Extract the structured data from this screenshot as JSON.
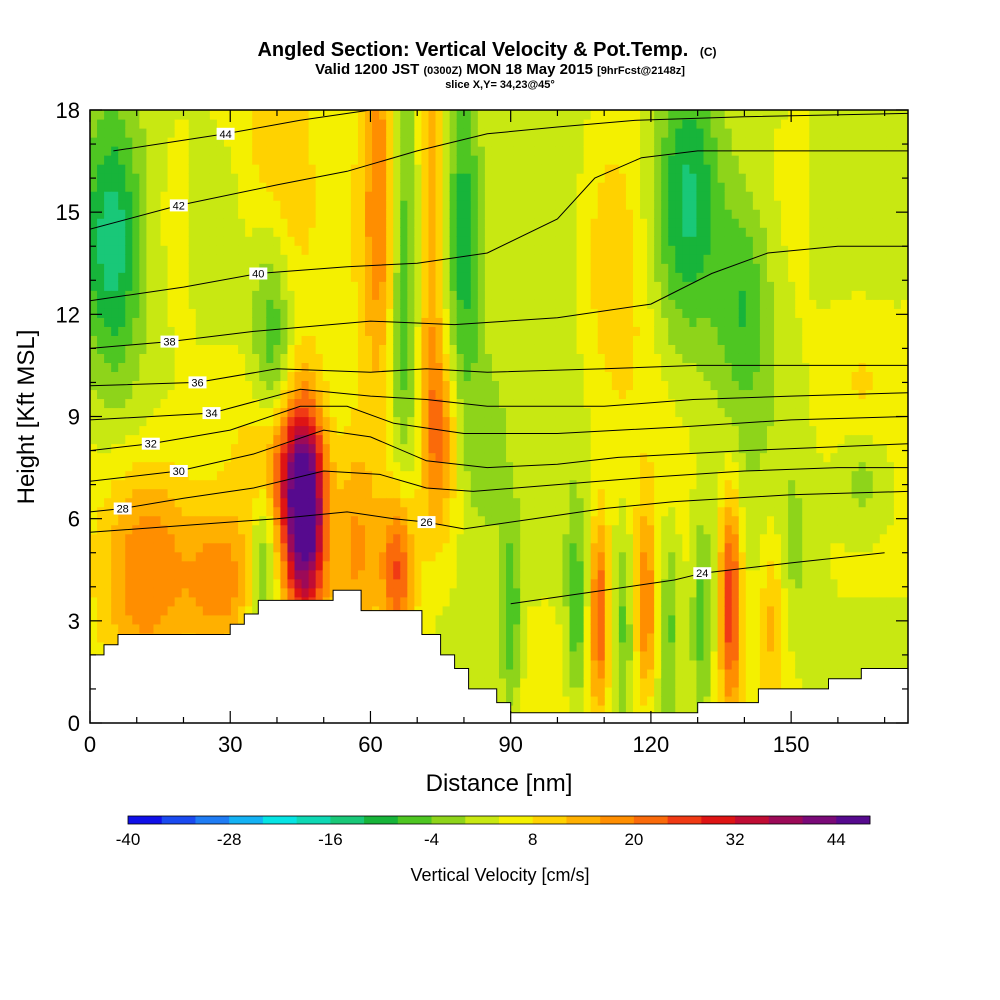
{
  "header": {
    "title_main": "Angled Section: Vertical Velocity & Pot.Temp.",
    "title_unit": "(C)",
    "valid_prefix": "Valid 1200 JST",
    "valid_utc": "(0300Z)",
    "valid_date": "MON 18 May 2015",
    "valid_fcst": "[9hrFcst@2148z]",
    "slice": "slice X,Y= 34,23@45°"
  },
  "colorbar": {
    "title": "Vertical Velocity [cm/s]",
    "tick_labels": [
      "-40",
      "-28",
      "-16",
      "-4",
      "8",
      "20",
      "32",
      "44"
    ],
    "colors": [
      "#1010e8",
      "#1a4af0",
      "#1f7cf4",
      "#14b2f4",
      "#06e4e4",
      "#0ed8b4",
      "#19c878",
      "#17b43a",
      "#4ec622",
      "#8ed41a",
      "#c8e812",
      "#f4f000",
      "#ffd200",
      "#ffb000",
      "#ff8e00",
      "#fa6a0a",
      "#f03a14",
      "#de1414",
      "#c00c34",
      "#9c0a58",
      "#7a0a78",
      "#560a8e"
    ]
  },
  "chart_data": {
    "type": "heatmap",
    "xlabel": "Distance [nm]",
    "ylabel": "Height [Kft MSL]",
    "xlim": [
      0,
      175
    ],
    "ylim": [
      0,
      18
    ],
    "xticks": [
      0,
      30,
      60,
      90,
      120,
      150
    ],
    "yticks": [
      0,
      3,
      6,
      9,
      12,
      15,
      18
    ],
    "grid": false,
    "terrain_profile": [
      [
        0,
        2.0
      ],
      [
        3,
        2.0
      ],
      [
        3,
        2.3
      ],
      [
        6,
        2.3
      ],
      [
        6,
        2.6
      ],
      [
        30,
        2.6
      ],
      [
        30,
        2.9
      ],
      [
        33,
        2.9
      ],
      [
        33,
        3.2
      ],
      [
        36,
        3.2
      ],
      [
        36,
        3.6
      ],
      [
        52,
        3.6
      ],
      [
        52,
        3.9
      ],
      [
        58,
        3.9
      ],
      [
        58,
        3.3
      ],
      [
        71,
        3.3
      ],
      [
        71,
        2.6
      ],
      [
        75,
        2.6
      ],
      [
        75,
        2.0
      ],
      [
        78,
        2.0
      ],
      [
        78,
        1.6
      ],
      [
        81,
        1.6
      ],
      [
        81,
        1.0
      ],
      [
        87,
        1.0
      ],
      [
        87,
        0.6
      ],
      [
        90,
        0.6
      ],
      [
        90,
        0.3
      ],
      [
        130,
        0.3
      ],
      [
        130,
        0.6
      ],
      [
        143,
        0.6
      ],
      [
        143,
        1.0
      ],
      [
        158,
        1.0
      ],
      [
        158,
        1.3
      ],
      [
        165,
        1.3
      ],
      [
        165,
        1.6
      ],
      [
        175,
        1.6
      ]
    ],
    "velocity_features": [
      {
        "x": 46,
        "z": 6.2,
        "sx": 3.2,
        "sz": 2.2,
        "w": 50
      },
      {
        "x": 40,
        "z": 7.5,
        "sx": 4.5,
        "sz": 1.5,
        "w": 14
      },
      {
        "x": 39,
        "z": 11.5,
        "sx": 3.0,
        "sz": 2.6,
        "w": -13
      },
      {
        "x": 37,
        "z": 5.0,
        "sx": 2.0,
        "sz": 1.8,
        "w": -12
      },
      {
        "x": 57,
        "z": 5.5,
        "sx": 3.5,
        "sz": 2.5,
        "w": 14
      },
      {
        "x": 66,
        "z": 4.5,
        "sx": 2.5,
        "sz": 1.7,
        "w": 22
      },
      {
        "x": 62,
        "z": 15.5,
        "sx": 2.8,
        "sz": 4.5,
        "w": 15
      },
      {
        "x": 67,
        "z": 13.0,
        "sx": 2.2,
        "sz": 5.0,
        "w": -12
      },
      {
        "x": 73,
        "z": 14.0,
        "sx": 2.0,
        "sz": 4.5,
        "w": 13
      },
      {
        "x": 80,
        "z": 14.0,
        "sx": 2.5,
        "sz": 4.5,
        "w": -12
      },
      {
        "x": 75,
        "z": 8.5,
        "sx": 2.5,
        "sz": 1.8,
        "w": 12
      },
      {
        "x": 85,
        "z": 8.0,
        "sx": 3.0,
        "sz": 2.0,
        "w": -8
      },
      {
        "x": 5,
        "z": 14.2,
        "sx": 5.0,
        "sz": 2.8,
        "w": -20
      },
      {
        "x": 12,
        "z": 4.8,
        "sx": 7.0,
        "sz": 2.2,
        "w": 17
      },
      {
        "x": 28,
        "z": 4.0,
        "sx": 5.0,
        "sz": 1.5,
        "w": 14
      },
      {
        "x": 40,
        "z": 16.0,
        "sx": 5.0,
        "sz": 3.0,
        "w": 10
      },
      {
        "x": 128,
        "z": 15.5,
        "sx": 5.0,
        "sz": 3.0,
        "w": -16
      },
      {
        "x": 140,
        "z": 12.5,
        "sx": 4.5,
        "sz": 2.5,
        "w": -13
      },
      {
        "x": 113,
        "z": 13.5,
        "sx": 6.0,
        "sz": 3.0,
        "w": 8
      },
      {
        "x": 100,
        "z": 14.5,
        "sx": 5.0,
        "sz": 3.5,
        "w": -6
      },
      {
        "x": 90,
        "z": 3.2,
        "sx": 1.5,
        "sz": 2.0,
        "w": -12
      },
      {
        "x": 104,
        "z": 3.2,
        "sx": 1.5,
        "sz": 2.0,
        "w": -12
      },
      {
        "x": 109,
        "z": 3.2,
        "sx": 1.4,
        "sz": 2.0,
        "w": 20
      },
      {
        "x": 119,
        "z": 3.2,
        "sx": 1.5,
        "sz": 2.0,
        "w": 17
      },
      {
        "x": 114,
        "z": 3.2,
        "sx": 1.3,
        "sz": 2.0,
        "w": -8
      },
      {
        "x": 124,
        "z": 3.2,
        "sx": 1.4,
        "sz": 2.0,
        "w": -8
      },
      {
        "x": 137,
        "z": 3.6,
        "sx": 1.6,
        "sz": 2.2,
        "w": 24
      },
      {
        "x": 131,
        "z": 3.2,
        "sx": 1.5,
        "sz": 2.0,
        "w": -10
      },
      {
        "x": 146,
        "z": 3.5,
        "sx": 2.0,
        "sz": 2.0,
        "w": 10
      },
      {
        "x": 150,
        "z": 5.0,
        "sx": 4.0,
        "sz": 2.0,
        "w": -5
      },
      {
        "x": 165,
        "z": 7.2,
        "sx": 4.0,
        "sz": 1.2,
        "w": -9
      },
      {
        "x": 165,
        "z": 10.0,
        "sx": 5.0,
        "sz": 2.0,
        "w": 4
      }
    ],
    "theta_contours": [
      {
        "level": 24,
        "label": "24",
        "label_x": 131,
        "points": [
          [
            90,
            3.5
          ],
          [
            110,
            3.9
          ],
          [
            125,
            4.2
          ],
          [
            131,
            4.4
          ],
          [
            150,
            4.7
          ],
          [
            170,
            5.0
          ]
        ]
      },
      {
        "level": 26,
        "label": "26",
        "label_x": 72,
        "points": [
          [
            0,
            5.6
          ],
          [
            20,
            5.8
          ],
          [
            40,
            6.0
          ],
          [
            55,
            6.2
          ],
          [
            65,
            6.0
          ],
          [
            72,
            5.9
          ],
          [
            80,
            5.7
          ],
          [
            95,
            6.0
          ],
          [
            110,
            6.3
          ],
          [
            125,
            6.5
          ],
          [
            150,
            6.7
          ],
          [
            175,
            6.8
          ]
        ]
      },
      {
        "level": 28,
        "label": "28",
        "label_x": 7,
        "points": [
          [
            0,
            6.2
          ],
          [
            7,
            6.3
          ],
          [
            20,
            6.6
          ],
          [
            35,
            6.9
          ],
          [
            50,
            7.4
          ],
          [
            62,
            7.3
          ],
          [
            72,
            6.9
          ],
          [
            82,
            6.8
          ],
          [
            100,
            7.0
          ],
          [
            118,
            7.2
          ],
          [
            140,
            7.4
          ],
          [
            160,
            7.5
          ],
          [
            175,
            7.5
          ]
        ]
      },
      {
        "level": 30,
        "label": "30",
        "label_x": 19,
        "points": [
          [
            0,
            7.1
          ],
          [
            19,
            7.4
          ],
          [
            35,
            7.9
          ],
          [
            50,
            8.6
          ],
          [
            60,
            8.4
          ],
          [
            72,
            7.7
          ],
          [
            85,
            7.5
          ],
          [
            100,
            7.6
          ],
          [
            113,
            7.8
          ],
          [
            140,
            8.0
          ],
          [
            175,
            8.2
          ]
        ]
      },
      {
        "level": 32,
        "label": "32",
        "label_x": 13,
        "points": [
          [
            0,
            8.0
          ],
          [
            13,
            8.2
          ],
          [
            30,
            8.6
          ],
          [
            45,
            9.3
          ],
          [
            55,
            9.3
          ],
          [
            65,
            8.8
          ],
          [
            80,
            8.5
          ],
          [
            100,
            8.5
          ],
          [
            127,
            8.7
          ],
          [
            150,
            8.9
          ],
          [
            175,
            9.0
          ]
        ]
      },
      {
        "level": 34,
        "label": "34",
        "label_x": 26,
        "points": [
          [
            0,
            8.9
          ],
          [
            26,
            9.1
          ],
          [
            45,
            9.8
          ],
          [
            60,
            9.6
          ],
          [
            72,
            9.5
          ],
          [
            85,
            9.3
          ],
          [
            110,
            9.3
          ],
          [
            129,
            9.5
          ],
          [
            150,
            9.6
          ],
          [
            175,
            9.7
          ]
        ]
      },
      {
        "level": 36,
        "label": "36",
        "label_x": 23,
        "points": [
          [
            0,
            9.9
          ],
          [
            23,
            10.0
          ],
          [
            40,
            10.4
          ],
          [
            60,
            10.3
          ],
          [
            72,
            10.4
          ],
          [
            85,
            10.3
          ],
          [
            110,
            10.4
          ],
          [
            130,
            10.5
          ],
          [
            150,
            10.5
          ],
          [
            175,
            10.5
          ]
        ]
      },
      {
        "level": 38,
        "label": "38",
        "label_x": 17,
        "points": [
          [
            0,
            11.0
          ],
          [
            17,
            11.2
          ],
          [
            35,
            11.5
          ],
          [
            60,
            11.8
          ],
          [
            78,
            11.7
          ],
          [
            100,
            11.9
          ],
          [
            120,
            12.3
          ],
          [
            133,
            13.2
          ],
          [
            145,
            13.8
          ],
          [
            160,
            14.0
          ],
          [
            175,
            14.0
          ]
        ]
      },
      {
        "level": 40,
        "label": "40",
        "label_x": 36,
        "points": [
          [
            0,
            12.4
          ],
          [
            20,
            12.8
          ],
          [
            36,
            13.2
          ],
          [
            55,
            13.4
          ],
          [
            70,
            13.5
          ],
          [
            85,
            13.8
          ],
          [
            100,
            14.8
          ],
          [
            108,
            16.0
          ],
          [
            118,
            16.6
          ],
          [
            130,
            16.8
          ],
          [
            150,
            16.8
          ],
          [
            175,
            16.8
          ]
        ]
      },
      {
        "level": 42,
        "label": "42",
        "label_x": 19,
        "points": [
          [
            0,
            14.5
          ],
          [
            19,
            15.2
          ],
          [
            40,
            15.8
          ],
          [
            55,
            16.2
          ],
          [
            70,
            16.8
          ],
          [
            85,
            17.3
          ],
          [
            100,
            17.5
          ],
          [
            117,
            17.7
          ],
          [
            140,
            17.8
          ],
          [
            175,
            17.9
          ]
        ]
      },
      {
        "level": 44,
        "label": "44",
        "label_x": 29,
        "points": [
          [
            5,
            16.8
          ],
          [
            29,
            17.3
          ],
          [
            45,
            17.7
          ],
          [
            60,
            18.0
          ]
        ]
      }
    ]
  }
}
